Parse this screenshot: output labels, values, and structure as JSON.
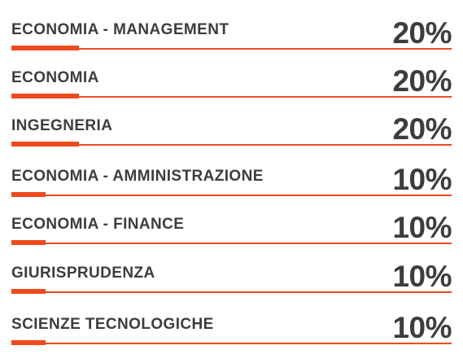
{
  "accent_color": "#f04a1c",
  "text_color": "#3d3d3d",
  "items": [
    {
      "label": "ECONOMIA - MANAGEMENT",
      "value": "20%",
      "fraction": 0.2
    },
    {
      "label": "ECONOMIA",
      "value": "20%",
      "fraction": 0.2
    },
    {
      "label": "INGEGNERIA",
      "value": "20%",
      "fraction": 0.2
    },
    {
      "label": "ECONOMIA - AMMINISTRAZIONE",
      "value": "10%",
      "fraction": 0.1
    },
    {
      "label": "ECONOMIA - FINANCE",
      "value": "10%",
      "fraction": 0.1
    },
    {
      "label": "GIURISPRUDENZA",
      "value": "10%",
      "fraction": 0.1
    },
    {
      "label": "SCIENZE TECNOLOGICHE",
      "value": "10%",
      "fraction": 0.1
    }
  ]
}
